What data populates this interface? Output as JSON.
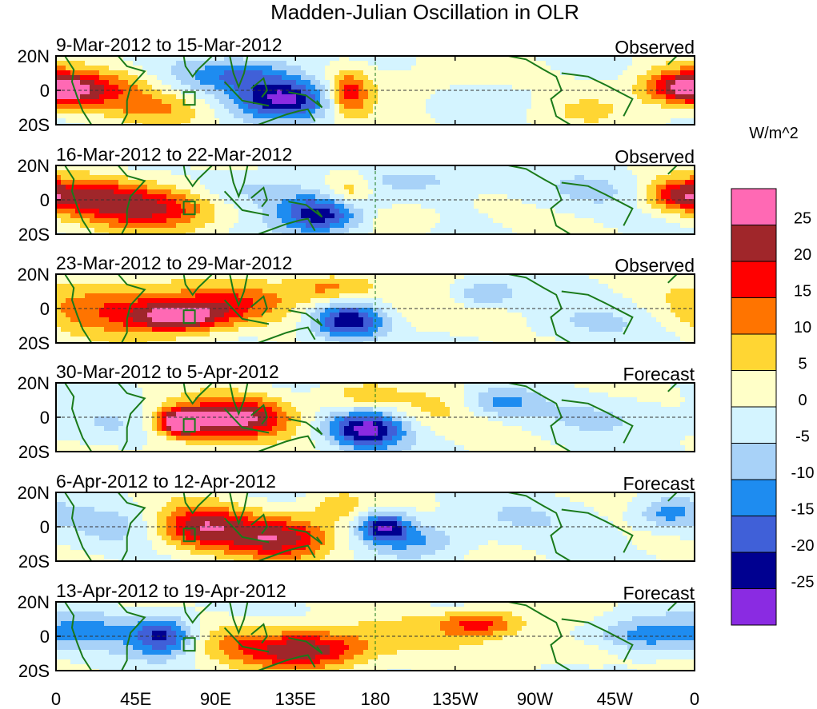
{
  "chart_data": {
    "type": "heatmap",
    "title": "Madden-Julian Oscillation in OLR",
    "units": "W/m^2",
    "panels": [
      {
        "date_range": "9-Mar-2012 to 15-Mar-2012",
        "status": "Observed"
      },
      {
        "date_range": "16-Mar-2012 to 22-Mar-2012",
        "status": "Observed"
      },
      {
        "date_range": "23-Mar-2012 to 29-Mar-2012",
        "status": "Observed"
      },
      {
        "date_range": "30-Mar-2012 to 5-Apr-2012",
        "status": "Forecast"
      },
      {
        "date_range": "6-Apr-2012 to 12-Apr-2012",
        "status": "Forecast"
      },
      {
        "date_range": "13-Apr-2012 to 19-Apr-2012",
        "status": "Forecast"
      }
    ],
    "x_ticks": [
      "0",
      "45E",
      "90E",
      "135E",
      "180",
      "135W",
      "90W",
      "45W",
      "0"
    ],
    "x_range_deg_east": [
      0,
      360
    ],
    "y_ticks": [
      "20N",
      "0",
      "20S"
    ],
    "y_range_deg": [
      -20,
      20
    ],
    "colorbar": {
      "labels": [
        "25",
        "20",
        "15",
        "10",
        "5",
        "0",
        "-5",
        "-10",
        "-15",
        "-20",
        "-25"
      ],
      "colors": [
        "#ff69b4",
        "#a0262a",
        "#ff0000",
        "#ff7400",
        "#ffd633",
        "#ffffc8",
        "#d4f4ff",
        "#a8d2f8",
        "#1e8cf0",
        "#4060d8",
        "#000090",
        "#8a2be2"
      ]
    },
    "anomalies": [
      [
        {
          "lon": 25,
          "lat": 0,
          "sx": 30,
          "sy": 9,
          "v": 12
        },
        {
          "lon": 8,
          "lat": 0,
          "sx": 14,
          "sy": 6,
          "v": 14
        },
        {
          "lon": 60,
          "lat": -12,
          "sx": 20,
          "sy": 6,
          "v": 7
        },
        {
          "lon": 80,
          "lat": 8,
          "sx": 22,
          "sy": 7,
          "v": -7
        },
        {
          "lon": 130,
          "lat": -5,
          "sx": 20,
          "sy": 8,
          "v": -27
        },
        {
          "lon": 112,
          "lat": 10,
          "sx": 20,
          "sy": 7,
          "v": -12
        },
        {
          "lon": 165,
          "lat": -2,
          "sx": 8,
          "sy": 9,
          "v": 18
        },
        {
          "lon": 200,
          "lat": 0,
          "sx": 40,
          "sy": 10,
          "v": 4
        },
        {
          "lon": 250,
          "lat": -5,
          "sx": 25,
          "sy": 7,
          "v": -6
        },
        {
          "lon": 350,
          "lat": 3,
          "sx": 15,
          "sy": 7,
          "v": 16
        },
        {
          "lon": 300,
          "lat": -10,
          "sx": 25,
          "sy": 8,
          "v": 5
        }
      ],
      [
        {
          "lon": 15,
          "lat": 3,
          "sx": 25,
          "sy": 8,
          "v": 15
        },
        {
          "lon": 55,
          "lat": -5,
          "sx": 28,
          "sy": 9,
          "v": 20
        },
        {
          "lon": 110,
          "lat": 5,
          "sx": 22,
          "sy": 8,
          "v": -8
        },
        {
          "lon": 150,
          "lat": -8,
          "sx": 18,
          "sy": 8,
          "v": -26
        },
        {
          "lon": 165,
          "lat": 5,
          "sx": 10,
          "sy": 8,
          "v": 12
        },
        {
          "lon": 190,
          "lat": -10,
          "sx": 18,
          "sy": 6,
          "v": 6
        },
        {
          "lon": 210,
          "lat": 12,
          "sx": 30,
          "sy": 6,
          "v": -6
        },
        {
          "lon": 300,
          "lat": 5,
          "sx": 30,
          "sy": 8,
          "v": -5
        },
        {
          "lon": 350,
          "lat": 3,
          "sx": 12,
          "sy": 6,
          "v": 14
        }
      ],
      [
        {
          "lon": 40,
          "lat": 0,
          "sx": 35,
          "sy": 11,
          "v": 15
        },
        {
          "lon": 70,
          "lat": -5,
          "sx": 18,
          "sy": 6,
          "v": 22
        },
        {
          "lon": 100,
          "lat": 3,
          "sx": 22,
          "sy": 8,
          "v": 12
        },
        {
          "lon": 165,
          "lat": -7,
          "sx": 15,
          "sy": 8,
          "v": -27
        },
        {
          "lon": 155,
          "lat": 12,
          "sx": 18,
          "sy": 6,
          "v": 12
        },
        {
          "lon": 240,
          "lat": 8,
          "sx": 15,
          "sy": 6,
          "v": -12
        },
        {
          "lon": 200,
          "lat": 0,
          "sx": 35,
          "sy": 10,
          "v": 6
        },
        {
          "lon": 300,
          "lat": -8,
          "sx": 30,
          "sy": 8,
          "v": -5
        }
      ],
      [
        {
          "lon": 85,
          "lat": -2,
          "sx": 22,
          "sy": 9,
          "v": 18
        },
        {
          "lon": 110,
          "lat": 0,
          "sx": 18,
          "sy": 8,
          "v": 15
        },
        {
          "lon": 70,
          "lat": -3,
          "sx": 8,
          "sy": 5,
          "v": 26
        },
        {
          "lon": 175,
          "lat": -7,
          "sx": 15,
          "sy": 8,
          "v": -27
        },
        {
          "lon": 30,
          "lat": -5,
          "sx": 20,
          "sy": 8,
          "v": -6
        },
        {
          "lon": 250,
          "lat": 8,
          "sx": 15,
          "sy": 6,
          "v": -13
        },
        {
          "lon": 215,
          "lat": 5,
          "sx": 30,
          "sy": 8,
          "v": 5
        },
        {
          "lon": 170,
          "lat": 12,
          "sx": 15,
          "sy": 6,
          "v": 8
        },
        {
          "lon": 310,
          "lat": 0,
          "sx": 30,
          "sy": 8,
          "v": -5
        }
      ],
      [
        {
          "lon": 80,
          "lat": 0,
          "sx": 18,
          "sy": 9,
          "v": 22
        },
        {
          "lon": 125,
          "lat": -6,
          "sx": 22,
          "sy": 9,
          "v": 23
        },
        {
          "lon": 185,
          "lat": 0,
          "sx": 10,
          "sy": 6,
          "v": -24
        },
        {
          "lon": 205,
          "lat": -8,
          "sx": 18,
          "sy": 7,
          "v": -10
        },
        {
          "lon": 30,
          "lat": 0,
          "sx": 25,
          "sy": 9,
          "v": -6
        },
        {
          "lon": 160,
          "lat": 12,
          "sx": 12,
          "sy": 6,
          "v": 8
        },
        {
          "lon": 260,
          "lat": 5,
          "sx": 30,
          "sy": 8,
          "v": -4
        },
        {
          "lon": 345,
          "lat": 8,
          "sx": 12,
          "sy": 6,
          "v": -12
        }
      ],
      [
        {
          "lon": 140,
          "lat": -8,
          "sx": 25,
          "sy": 8,
          "v": 25
        },
        {
          "lon": 100,
          "lat": -3,
          "sx": 15,
          "sy": 7,
          "v": 6
        },
        {
          "lon": 60,
          "lat": 0,
          "sx": 12,
          "sy": 8,
          "v": -21
        },
        {
          "lon": 20,
          "lat": 3,
          "sx": 20,
          "sy": 8,
          "v": -10
        },
        {
          "lon": 240,
          "lat": 8,
          "sx": 15,
          "sy": 5,
          "v": 15
        },
        {
          "lon": 220,
          "lat": 2,
          "sx": 40,
          "sy": 8,
          "v": 6
        },
        {
          "lon": 330,
          "lat": 0,
          "sx": 20,
          "sy": 8,
          "v": -14
        },
        {
          "lon": 300,
          "lat": -10,
          "sx": 20,
          "sy": 6,
          "v": 5
        }
      ]
    ]
  }
}
